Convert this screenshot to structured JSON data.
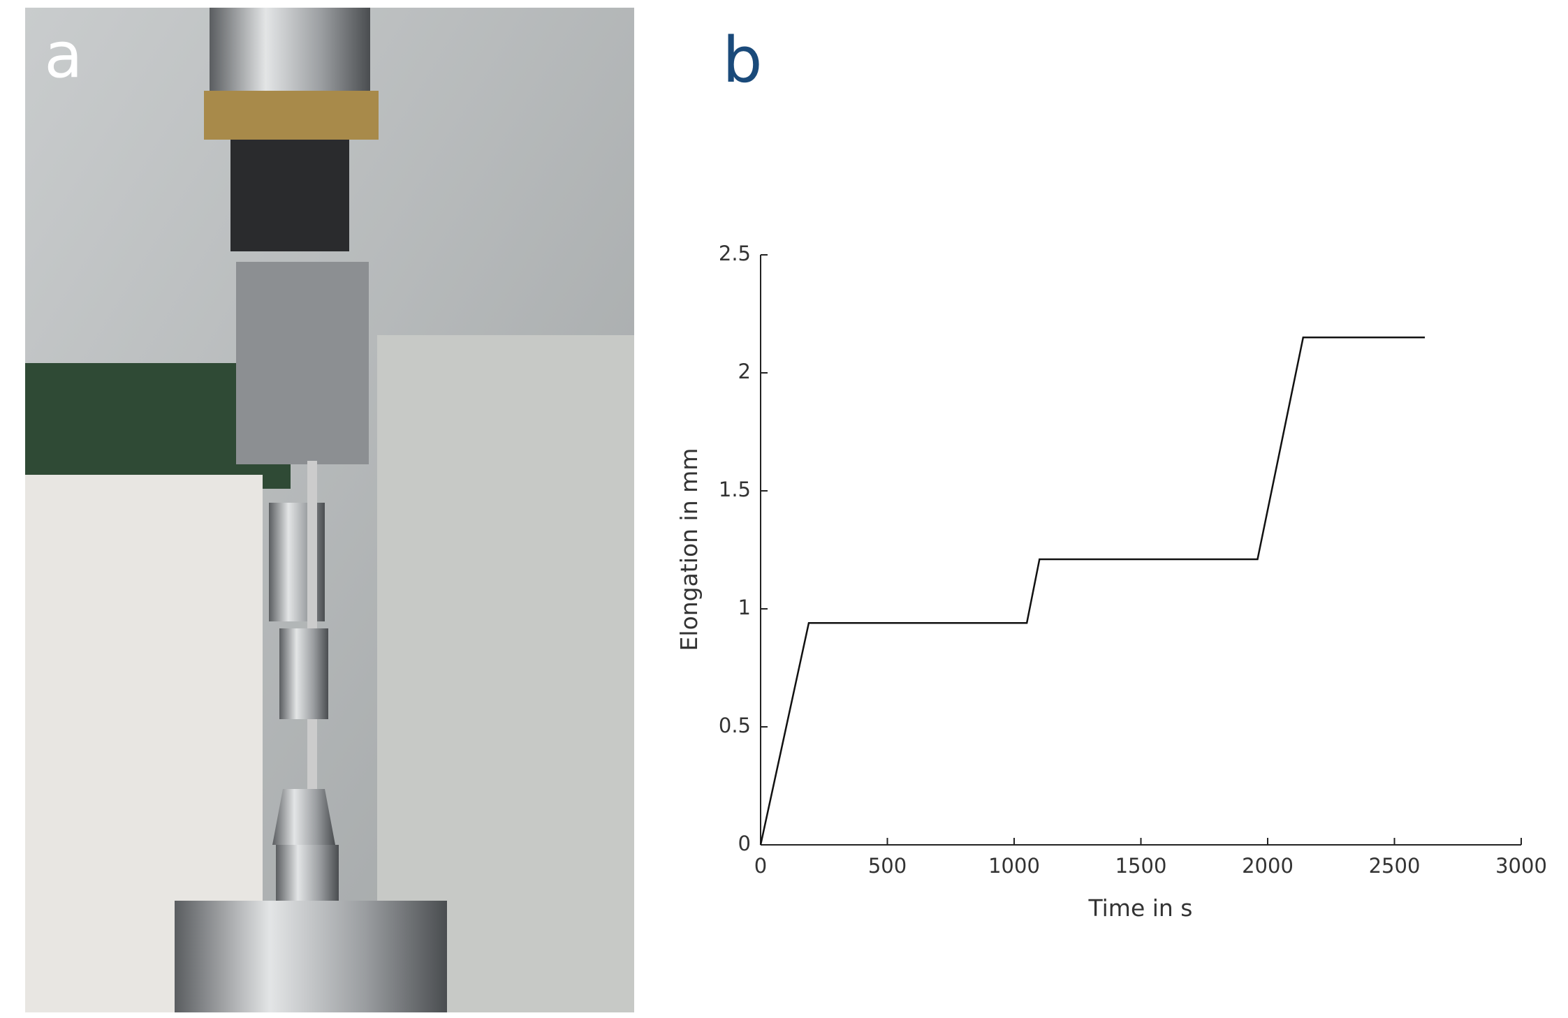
{
  "panel_labels": [
    "a",
    "b"
  ],
  "chart_data": {
    "type": "line",
    "x_label": "Time in s",
    "y_label": "Elongation in mm",
    "x": [
      0,
      190,
      1050,
      1100,
      1960,
      2140,
      2620
    ],
    "values": [
      0,
      0.94,
      0.94,
      1.21,
      1.21,
      2.15,
      2.15
    ],
    "color": "#111111",
    "xlim": [
      0,
      3000
    ],
    "xticks": [
      0,
      500,
      1000,
      1500,
      2000,
      2500,
      3000
    ],
    "ylim": [
      0,
      2.5
    ],
    "yticks": [
      0,
      0.5,
      1,
      1.5,
      2,
      2.5
    ],
    "grid": false
  }
}
